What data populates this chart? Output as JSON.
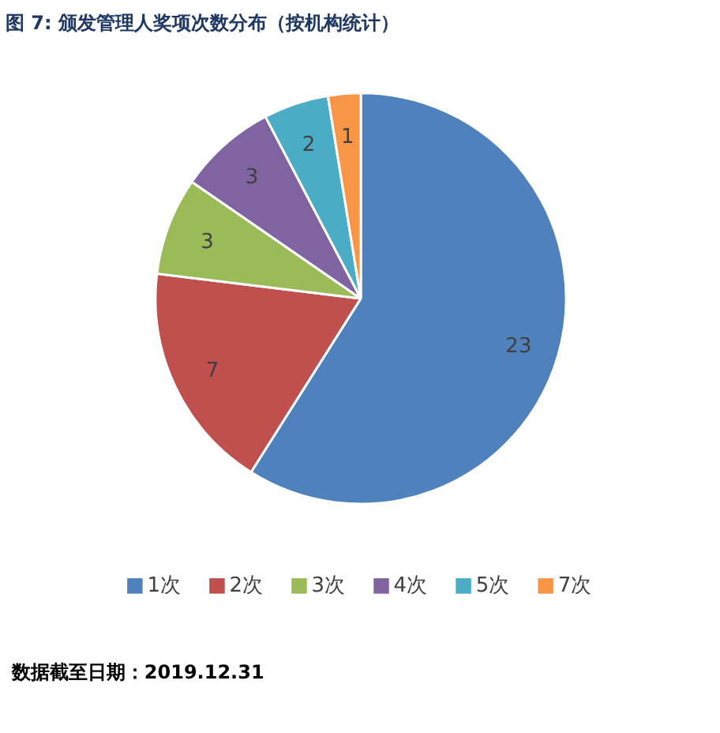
{
  "chart_data": {
    "type": "pie",
    "title": "图 7: 颁发管理人奖项次数分布（按机构统计）",
    "categories": [
      "1次",
      "2次",
      "3次",
      "4次",
      "5次",
      "7次"
    ],
    "values": [
      23,
      7,
      3,
      3,
      2,
      1
    ],
    "colors": [
      "#4f81bd",
      "#c0504d",
      "#9bbb59",
      "#8064a2",
      "#4bacc6",
      "#f79646"
    ],
    "data_labels": true,
    "legend": "bottom",
    "annotations": [
      "数据截至日期：2019.12.31"
    ]
  }
}
